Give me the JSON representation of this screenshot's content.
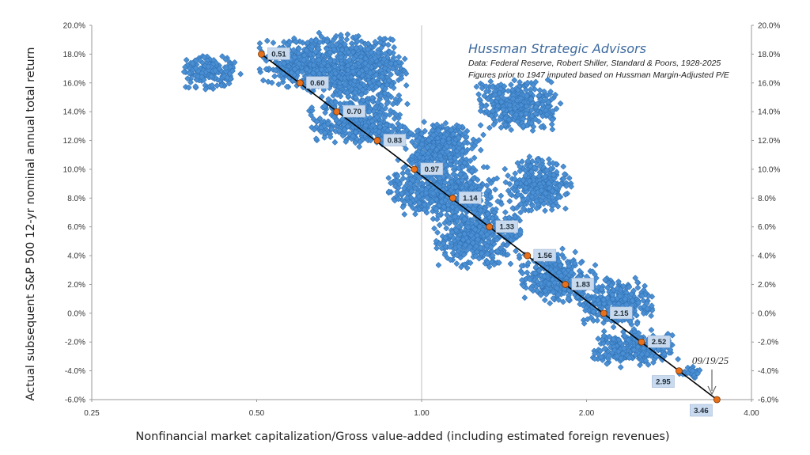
{
  "chart_data": {
    "type": "scatter",
    "title": "",
    "brand": "Hussman Strategic Advisors",
    "source_line1": "Data: Federal Reserve, Robert Shiller, Standard & Poors, 1928-2025",
    "source_line2": "Figures prior to 1947 imputed based on Hussman Margin-Adjusted P/E",
    "xlabel": "Nonfinancial market capitalization/Gross value-added (including estimated foreign revenues)",
    "ylabel": "Actual subsequent S&P 500 12-yr nominal annual total return",
    "x_scale": "log",
    "xlim": [
      0.25,
      5.0
    ],
    "ylim": [
      -6.0,
      20.0
    ],
    "x_ticks": [
      0.25,
      0.5,
      1.0,
      2.0,
      4.0
    ],
    "x_tick_labels": [
      "0.25",
      "0.50",
      "1.00",
      "2.00",
      "4.00"
    ],
    "y_ticks": [
      -6,
      -4,
      -2,
      0,
      2,
      4,
      6,
      8,
      10,
      12,
      14,
      16,
      18,
      20
    ],
    "y_tick_labels": [
      "-6.0%",
      "-4.0%",
      "-2.0%",
      "0.0%",
      "2.0%",
      "4.0%",
      "6.0%",
      "8.0%",
      "10.0%",
      "12.0%",
      "14.0%",
      "16.0%",
      "18.0%",
      "20.0%"
    ],
    "grid": {
      "vertical_at_x": 1.0,
      "horizontal": false
    },
    "colors": {
      "scatter": "#4a8fd4",
      "scatter_edge": "#2f6fb0",
      "fit_line": "#000000",
      "fit_points": "#e8701a",
      "label_bg": "#c9daee"
    },
    "scatter_clusters": [
      {
        "x_range": [
          0.36,
          0.47
        ],
        "y_range": [
          15.4,
          18.0
        ]
      },
      {
        "x_range": [
          0.5,
          0.75
        ],
        "y_range": [
          15.5,
          19.3
        ]
      },
      {
        "x_range": [
          0.62,
          0.95
        ],
        "y_range": [
          14.0,
          19.6
        ]
      },
      {
        "x_range": [
          0.62,
          0.95
        ],
        "y_range": [
          11.5,
          15.0
        ]
      },
      {
        "x_range": [
          0.9,
          1.3
        ],
        "y_range": [
          9.5,
          13.5
        ]
      },
      {
        "x_range": [
          1.25,
          1.8
        ],
        "y_range": [
          12.5,
          16.3
        ]
      },
      {
        "x_range": [
          0.85,
          1.4
        ],
        "y_range": [
          6.5,
          10.5
        ]
      },
      {
        "x_range": [
          1.4,
          1.9
        ],
        "y_range": [
          7.0,
          11.0
        ]
      },
      {
        "x_range": [
          1.05,
          1.55
        ],
        "y_range": [
          3.0,
          8.0
        ]
      },
      {
        "x_range": [
          1.5,
          2.1
        ],
        "y_range": [
          0.5,
          4.5
        ]
      },
      {
        "x_range": [
          1.9,
          2.7
        ],
        "y_range": [
          -1.0,
          2.5
        ]
      },
      {
        "x_range": [
          2.0,
          3.0
        ],
        "y_range": [
          -3.8,
          -1.0
        ]
      },
      {
        "x_range": [
          2.9,
          3.3
        ],
        "y_range": [
          -4.6,
          -3.6
        ]
      }
    ],
    "fit_line": [
      [
        0.51,
        18.0
      ],
      [
        3.46,
        -6.0
      ]
    ],
    "fit_points": [
      {
        "x": 0.51,
        "y": 18.0,
        "label": "0.51"
      },
      {
        "x": 0.6,
        "y": 16.0,
        "label": "0.60"
      },
      {
        "x": 0.7,
        "y": 14.0,
        "label": "0.70"
      },
      {
        "x": 0.83,
        "y": 12.0,
        "label": "0.83"
      },
      {
        "x": 0.97,
        "y": 10.0,
        "label": "0.97"
      },
      {
        "x": 1.14,
        "y": 8.0,
        "label": "1.14"
      },
      {
        "x": 1.33,
        "y": 6.0,
        "label": "1.33"
      },
      {
        "x": 1.56,
        "y": 4.0,
        "label": "1.56"
      },
      {
        "x": 1.83,
        "y": 2.0,
        "label": "1.83"
      },
      {
        "x": 2.15,
        "y": 0.0,
        "label": "2.15"
      },
      {
        "x": 2.52,
        "y": -2.0,
        "label": "2.52"
      },
      {
        "x": 2.95,
        "y": -4.0,
        "label": "2.95"
      },
      {
        "x": 3.46,
        "y": -6.0,
        "label": "3.46"
      }
    ],
    "annotation": {
      "text": "09/19/25",
      "points_to_x": 3.46,
      "points_to_y": -6.0
    }
  }
}
